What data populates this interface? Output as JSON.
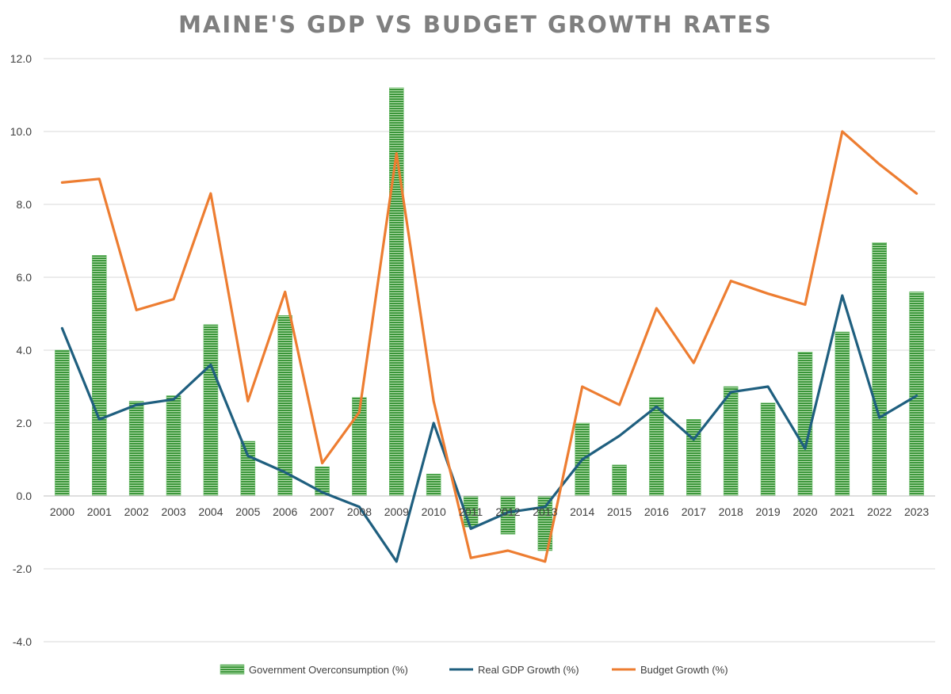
{
  "chart_data": {
    "type": "bar",
    "title": "MAINE'S GDP VS BUDGET GROWTH RATES",
    "xlabel": "",
    "ylabel": "",
    "ylim": [
      -4.0,
      12.0
    ],
    "yticks": [
      "12.0",
      "10.0",
      "8.0",
      "6.0",
      "4.0",
      "2.0",
      "0.0",
      "-2.0",
      "-4.0"
    ],
    "ytick_values": [
      12,
      10,
      8,
      6,
      4,
      2,
      0,
      -2,
      -4
    ],
    "categories": [
      "2000",
      "2001",
      "2002",
      "2003",
      "2004",
      "2005",
      "2006",
      "2007",
      "2008",
      "2009",
      "2010",
      "2011",
      "2012",
      "2013",
      "2014",
      "2015",
      "2016",
      "2017",
      "2018",
      "2019",
      "2020",
      "2021",
      "2022",
      "2023"
    ],
    "series": [
      {
        "name": "Government Overconsumption (%)",
        "kind": "bar",
        "color": "#3a9a3a",
        "values": [
          4.0,
          6.6,
          2.6,
          2.75,
          4.7,
          1.5,
          4.95,
          0.8,
          2.7,
          11.2,
          0.6,
          -0.85,
          -1.05,
          -1.5,
          2.0,
          0.85,
          2.7,
          2.1,
          3.0,
          2.55,
          3.95,
          4.5,
          6.95,
          5.6
        ]
      },
      {
        "name": "Real GDP Growth (%)",
        "kind": "line",
        "color": "#1f5f7f",
        "values": [
          4.6,
          2.1,
          2.5,
          2.65,
          3.6,
          1.1,
          0.65,
          0.1,
          -0.3,
          -1.8,
          2.0,
          -0.9,
          -0.45,
          -0.3,
          1.0,
          1.65,
          2.45,
          1.55,
          2.85,
          3.0,
          1.3,
          5.5,
          2.15,
          2.75
        ]
      },
      {
        "name": "Budget Growth (%)",
        "kind": "line",
        "color": "#ed7d31",
        "values": [
          8.6,
          8.7,
          5.1,
          5.4,
          8.3,
          2.6,
          5.6,
          0.9,
          2.3,
          9.4,
          2.6,
          -1.7,
          -1.5,
          -1.8,
          3.0,
          2.5,
          5.15,
          3.65,
          5.9,
          5.55,
          5.25,
          10.0,
          9.1,
          8.3
        ]
      }
    ],
    "legend_position": "bottom",
    "grid": true
  }
}
